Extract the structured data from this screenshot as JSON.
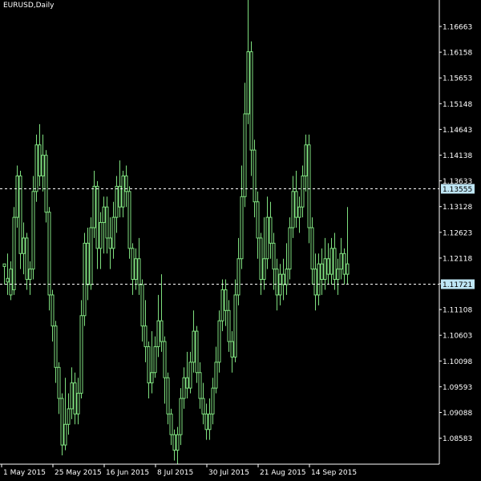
{
  "window": {
    "symbol_label": "EURUSD,Daily"
  },
  "colors": {
    "background": "#000000",
    "axis": "#ffffff",
    "candle": "#7fe07f",
    "level_line": "#ffffff",
    "level_tag_bg": "#bfe6f5",
    "level_tag_text": "#000000"
  },
  "chart_data": {
    "type": "candlestick",
    "title": "EURUSD,Daily",
    "xlabel": "",
    "ylabel": "",
    "ylim": [
      1.0823,
      1.172
    ],
    "y_ticks": [
      "1.16663",
      "1.16158",
      "1.15653",
      "1.15148",
      "1.14643",
      "1.14138",
      "1.13633",
      "1.13128",
      "1.12623",
      "1.12118",
      "1.11613",
      "1.11108",
      "1.10603",
      "1.10098",
      "1.09593",
      "1.09088",
      "1.08583"
    ],
    "x_ticks": [
      "1 May 2015",
      "25 May 2015",
      "16 Jun 2015",
      "8 Jul 2015",
      "30 Jul 2015",
      "21 Aug 2015",
      "14 Sep 2015"
    ],
    "levels": [
      {
        "label": "1.13555",
        "value": 1.13555
      },
      {
        "label": "1.11721",
        "value": 1.11721
      }
    ],
    "grid": false,
    "series": [
      {
        "values": [
          [
            1.121,
            1.1205,
            1.117,
            1.121
          ],
          [
            1.1182,
            1.1175,
            1.115,
            1.123
          ],
          [
            1.12,
            1.115,
            1.114,
            1.1215
          ],
          [
            1.116,
            1.13,
            1.115,
            1.132
          ],
          [
            1.13,
            1.138,
            1.128,
            1.14
          ],
          [
            1.138,
            1.123,
            1.12,
            1.139
          ],
          [
            1.123,
            1.126,
            1.119,
            1.129
          ],
          [
            1.126,
            1.118,
            1.116,
            1.127
          ],
          [
            1.118,
            1.12,
            1.115,
            1.1215
          ],
          [
            1.12,
            1.135,
            1.118,
            1.138
          ],
          [
            1.135,
            1.144,
            1.133,
            1.146
          ],
          [
            1.144,
            1.138,
            1.136,
            1.148
          ],
          [
            1.138,
            1.142,
            1.135,
            1.146
          ],
          [
            1.142,
            1.131,
            1.129,
            1.143
          ],
          [
            1.131,
            1.115,
            1.112,
            1.132
          ],
          [
            1.115,
            1.109,
            1.106,
            1.116
          ],
          [
            1.109,
            1.101,
            1.098,
            1.11
          ],
          [
            1.101,
            1.095,
            1.092,
            1.102
          ],
          [
            1.095,
            1.086,
            1.084,
            1.096
          ],
          [
            1.086,
            1.09,
            1.085,
            1.099
          ],
          [
            1.09,
            1.093,
            1.088,
            1.096
          ],
          [
            1.093,
            1.098,
            1.091,
            1.101
          ],
          [
            1.098,
            1.092,
            1.09,
            1.1
          ],
          [
            1.092,
            1.096,
            1.09,
            1.099
          ],
          [
            1.096,
            1.111,
            1.095,
            1.114
          ],
          [
            1.111,
            1.125,
            1.109,
            1.127
          ],
          [
            1.125,
            1.117,
            1.114,
            1.128
          ],
          [
            1.117,
            1.128,
            1.116,
            1.13
          ],
          [
            1.128,
            1.136,
            1.126,
            1.139
          ],
          [
            1.136,
            1.124,
            1.12,
            1.137
          ],
          [
            1.124,
            1.129,
            1.12,
            1.131
          ],
          [
            1.129,
            1.132,
            1.123,
            1.134
          ],
          [
            1.132,
            1.126,
            1.123,
            1.134
          ],
          [
            1.126,
            1.124,
            1.12,
            1.13
          ],
          [
            1.124,
            1.13,
            1.122,
            1.133
          ],
          [
            1.13,
            1.136,
            1.127,
            1.138
          ],
          [
            1.136,
            1.132,
            1.13,
            1.141
          ],
          [
            1.132,
            1.138,
            1.13,
            1.139
          ],
          [
            1.138,
            1.135,
            1.132,
            1.14
          ],
          [
            1.135,
            1.124,
            1.122,
            1.136
          ],
          [
            1.124,
            1.118,
            1.115,
            1.125
          ],
          [
            1.118,
            1.122,
            1.116,
            1.124
          ],
          [
            1.122,
            1.117,
            1.115,
            1.126
          ],
          [
            1.117,
            1.109,
            1.106,
            1.118
          ],
          [
            1.109,
            1.105,
            1.102,
            1.114
          ],
          [
            1.105,
            1.098,
            1.095,
            1.106
          ],
          [
            1.098,
            1.1,
            1.096,
            1.108
          ],
          [
            1.1,
            1.105,
            1.099,
            1.107
          ],
          [
            1.105,
            1.11,
            1.103,
            1.115
          ],
          [
            1.11,
            1.106,
            1.104,
            1.119
          ],
          [
            1.106,
            1.099,
            1.094,
            1.107
          ],
          [
            1.099,
            1.092,
            1.09,
            1.1
          ],
          [
            1.092,
            1.088,
            1.086,
            1.093
          ],
          [
            1.088,
            1.085,
            1.083,
            1.089
          ],
          [
            1.085,
            1.088,
            1.0823,
            1.0895
          ],
          [
            1.088,
            1.095,
            1.086,
            1.097
          ],
          [
            1.095,
            1.099,
            1.093,
            1.101
          ],
          [
            1.099,
            1.097,
            1.095,
            1.104
          ],
          [
            1.097,
            1.102,
            1.096,
            1.104
          ],
          [
            1.102,
            1.108,
            1.1,
            1.112
          ],
          [
            1.108,
            1.1,
            1.098,
            1.109
          ],
          [
            1.1,
            1.095,
            1.093,
            1.102
          ],
          [
            1.095,
            1.092,
            1.09,
            1.098
          ],
          [
            1.092,
            1.089,
            1.087,
            1.094
          ],
          [
            1.089,
            1.092,
            1.087,
            1.095
          ],
          [
            1.092,
            1.097,
            1.09,
            1.099
          ],
          [
            1.097,
            1.102,
            1.096,
            1.105
          ],
          [
            1.102,
            1.11,
            1.1,
            1.112
          ],
          [
            1.11,
            1.116,
            1.108,
            1.118
          ],
          [
            1.116,
            1.112,
            1.109,
            1.118
          ],
          [
            1.112,
            1.106,
            1.104,
            1.114
          ],
          [
            1.106,
            1.103,
            1.1,
            1.108
          ],
          [
            1.103,
            1.115,
            1.102,
            1.118
          ],
          [
            1.115,
            1.122,
            1.113,
            1.126
          ],
          [
            1.122,
            1.134,
            1.12,
            1.14
          ],
          [
            1.134,
            1.15,
            1.132,
            1.156
          ],
          [
            1.15,
            1.162,
            1.148,
            1.172
          ],
          [
            1.162,
            1.143,
            1.138,
            1.164
          ],
          [
            1.143,
            1.133,
            1.13,
            1.145
          ],
          [
            1.133,
            1.126,
            1.122,
            1.135
          ],
          [
            1.126,
            1.118,
            1.115,
            1.127
          ],
          [
            1.118,
            1.122,
            1.116,
            1.13
          ],
          [
            1.122,
            1.13,
            1.12,
            1.134
          ],
          [
            1.13,
            1.125,
            1.122,
            1.133
          ],
          [
            1.125,
            1.12,
            1.116,
            1.127
          ],
          [
            1.12,
            1.115,
            1.112,
            1.122
          ],
          [
            1.115,
            1.119,
            1.113,
            1.121
          ],
          [
            1.119,
            1.117,
            1.114,
            1.122
          ],
          [
            1.117,
            1.12,
            1.115,
            1.125
          ],
          [
            1.12,
            1.128,
            1.118,
            1.13
          ],
          [
            1.128,
            1.135,
            1.126,
            1.138
          ],
          [
            1.135,
            1.13,
            1.128,
            1.139
          ],
          [
            1.13,
            1.132,
            1.127,
            1.134
          ],
          [
            1.132,
            1.138,
            1.13,
            1.14
          ],
          [
            1.138,
            1.144,
            1.135,
            1.146
          ],
          [
            1.144,
            1.128,
            1.125,
            1.146
          ],
          [
            1.128,
            1.12,
            1.117,
            1.13
          ],
          [
            1.12,
            1.115,
            1.112,
            1.123
          ],
          [
            1.115,
            1.121,
            1.113,
            1.123
          ],
          [
            1.121,
            1.118,
            1.115,
            1.124
          ],
          [
            1.118,
            1.122,
            1.116,
            1.126
          ],
          [
            1.122,
            1.119,
            1.117,
            1.125
          ],
          [
            1.119,
            1.124,
            1.117,
            1.126
          ],
          [
            1.124,
            1.118,
            1.116,
            1.127
          ],
          [
            1.118,
            1.12,
            1.115,
            1.122
          ],
          [
            1.12,
            1.123,
            1.118,
            1.126
          ],
          [
            1.123,
            1.119,
            1.117,
            1.124
          ],
          [
            1.119,
            1.121,
            1.117,
            1.132
          ]
        ]
      }
    ]
  }
}
